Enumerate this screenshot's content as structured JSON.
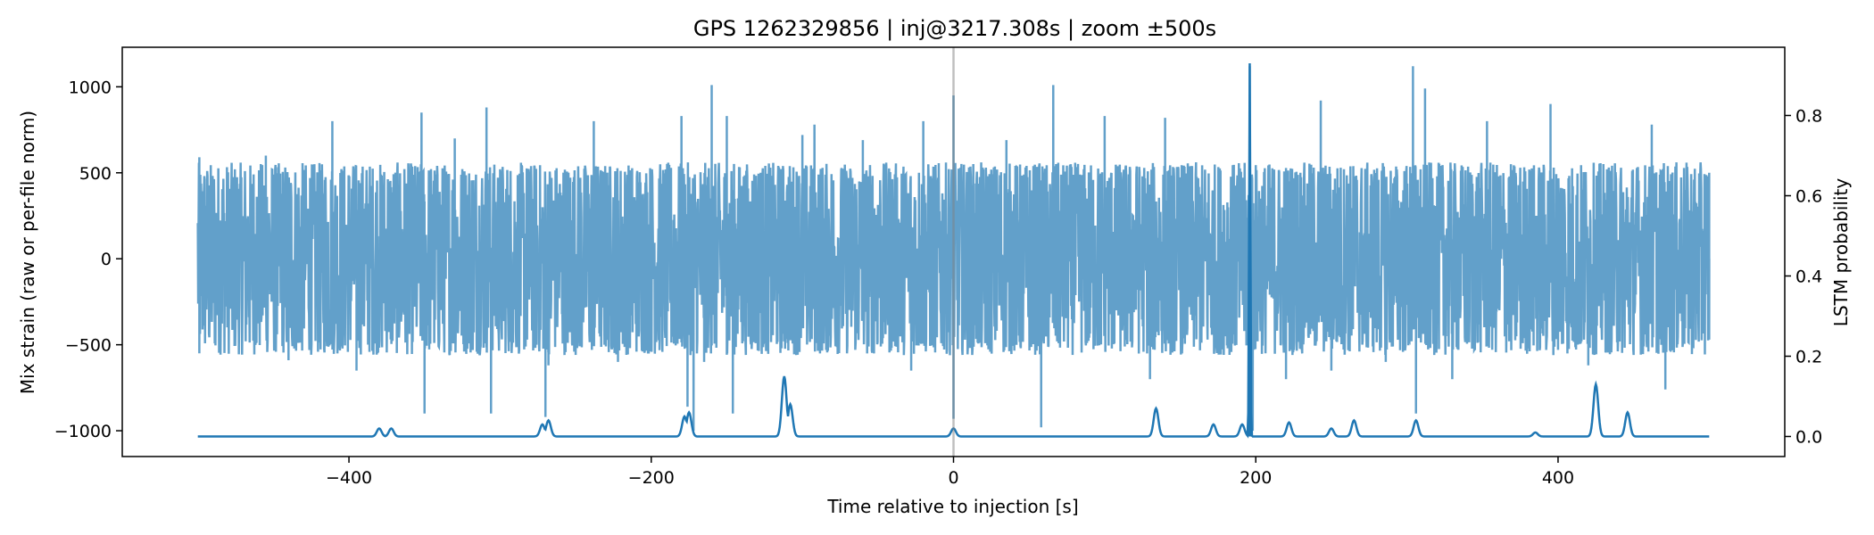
{
  "chart_data": {
    "type": "line",
    "title": "GPS 1262329856 | inj@3217.308s | zoom ±500s",
    "xlabel": "Time relative to injection [s]",
    "ylabel_left": "Mix strain (raw or per-file norm)",
    "ylabel_right": "LSTM probability",
    "xlim": [
      -550,
      550
    ],
    "ylim_left": [
      -1150,
      1230
    ],
    "ylim_right": [
      -0.05,
      0.97
    ],
    "x_ticks": [
      -400,
      -200,
      0,
      200,
      400
    ],
    "x_tick_labels": [
      "−400",
      "−200",
      "0",
      "200",
      "400"
    ],
    "y_left_ticks": [
      -1000,
      -500,
      0,
      500,
      1000
    ],
    "y_left_tick_labels": [
      "−1000",
      "−500",
      "0",
      "500",
      "1000"
    ],
    "y_right_ticks": [
      0.0,
      0.2,
      0.4,
      0.6,
      0.8
    ],
    "y_right_tick_labels": [
      "0.0",
      "0.2",
      "0.4",
      "0.6",
      "0.8"
    ],
    "grid": false,
    "injection_marker_x": 0,
    "colors": {
      "strain": "#1f77b4",
      "probability": "#1f77b4",
      "marker": "#808080"
    },
    "strain_series": {
      "axis": "left",
      "x_range": [
        -500,
        500
      ],
      "typical_envelope": [
        -550,
        550
      ],
      "spikes": [
        {
          "x": -499,
          "y": 590
        },
        {
          "x": -499,
          "y": -550
        },
        {
          "x": -455,
          "y": 600
        },
        {
          "x": -440,
          "y": -590
        },
        {
          "x": -411,
          "y": 800
        },
        {
          "x": -395,
          "y": -650
        },
        {
          "x": -352,
          "y": 850
        },
        {
          "x": -350,
          "y": -900
        },
        {
          "x": -330,
          "y": 700
        },
        {
          "x": -309,
          "y": 880
        },
        {
          "x": -306,
          "y": -900
        },
        {
          "x": -270,
          "y": -920
        },
        {
          "x": -268,
          "y": -620
        },
        {
          "x": -238,
          "y": 800
        },
        {
          "x": -222,
          "y": -600
        },
        {
          "x": -180,
          "y": 830
        },
        {
          "x": -176,
          "y": -860
        },
        {
          "x": -172,
          "y": -1000
        },
        {
          "x": -165,
          "y": -600
        },
        {
          "x": -160,
          "y": 1010
        },
        {
          "x": -150,
          "y": 830
        },
        {
          "x": -146,
          "y": -900
        },
        {
          "x": -100,
          "y": 720
        },
        {
          "x": -92,
          "y": 780
        },
        {
          "x": -60,
          "y": 690
        },
        {
          "x": -28,
          "y": -650
        },
        {
          "x": -20,
          "y": 800
        },
        {
          "x": 0,
          "y": 950
        },
        {
          "x": 0,
          "y": -930
        },
        {
          "x": 35,
          "y": 690
        },
        {
          "x": 58,
          "y": -980
        },
        {
          "x": 66,
          "y": 1010
        },
        {
          "x": 100,
          "y": 830
        },
        {
          "x": 130,
          "y": -700
        },
        {
          "x": 140,
          "y": 820
        },
        {
          "x": 196,
          "y": 1120
        },
        {
          "x": 197,
          "y": -880
        },
        {
          "x": 198,
          "y": -1000
        },
        {
          "x": 220,
          "y": -700
        },
        {
          "x": 243,
          "y": 920
        },
        {
          "x": 250,
          "y": -650
        },
        {
          "x": 286,
          "y": -600
        },
        {
          "x": 304,
          "y": 1120
        },
        {
          "x": 306,
          "y": -900
        },
        {
          "x": 312,
          "y": 990
        },
        {
          "x": 330,
          "y": -700
        },
        {
          "x": 353,
          "y": 800
        },
        {
          "x": 395,
          "y": 900
        },
        {
          "x": 420,
          "y": -620
        },
        {
          "x": 462,
          "y": 780
        },
        {
          "x": 471,
          "y": -760
        },
        {
          "x": 500,
          "y": 500
        },
        {
          "x": 500,
          "y": -470
        }
      ]
    },
    "probability_series": {
      "axis": "right",
      "baseline": 0.0,
      "x_range": [
        -500,
        500
      ],
      "peaks": [
        {
          "x": -380,
          "y": 0.02
        },
        {
          "x": -372,
          "y": 0.02
        },
        {
          "x": -272,
          "y": 0.03
        },
        {
          "x": -268,
          "y": 0.04
        },
        {
          "x": -178,
          "y": 0.05
        },
        {
          "x": -175,
          "y": 0.06
        },
        {
          "x": -112,
          "y": 0.15
        },
        {
          "x": -108,
          "y": 0.08
        },
        {
          "x": 0,
          "y": 0.02
        },
        {
          "x": 134,
          "y": 0.07
        },
        {
          "x": 172,
          "y": 0.03
        },
        {
          "x": 191,
          "y": 0.03
        },
        {
          "x": 196,
          "y": 0.93
        },
        {
          "x": 222,
          "y": 0.035
        },
        {
          "x": 250,
          "y": 0.02
        },
        {
          "x": 265,
          "y": 0.04
        },
        {
          "x": 306,
          "y": 0.04
        },
        {
          "x": 385,
          "y": 0.01
        },
        {
          "x": 425,
          "y": 0.13
        },
        {
          "x": 446,
          "y": 0.06
        }
      ]
    }
  }
}
